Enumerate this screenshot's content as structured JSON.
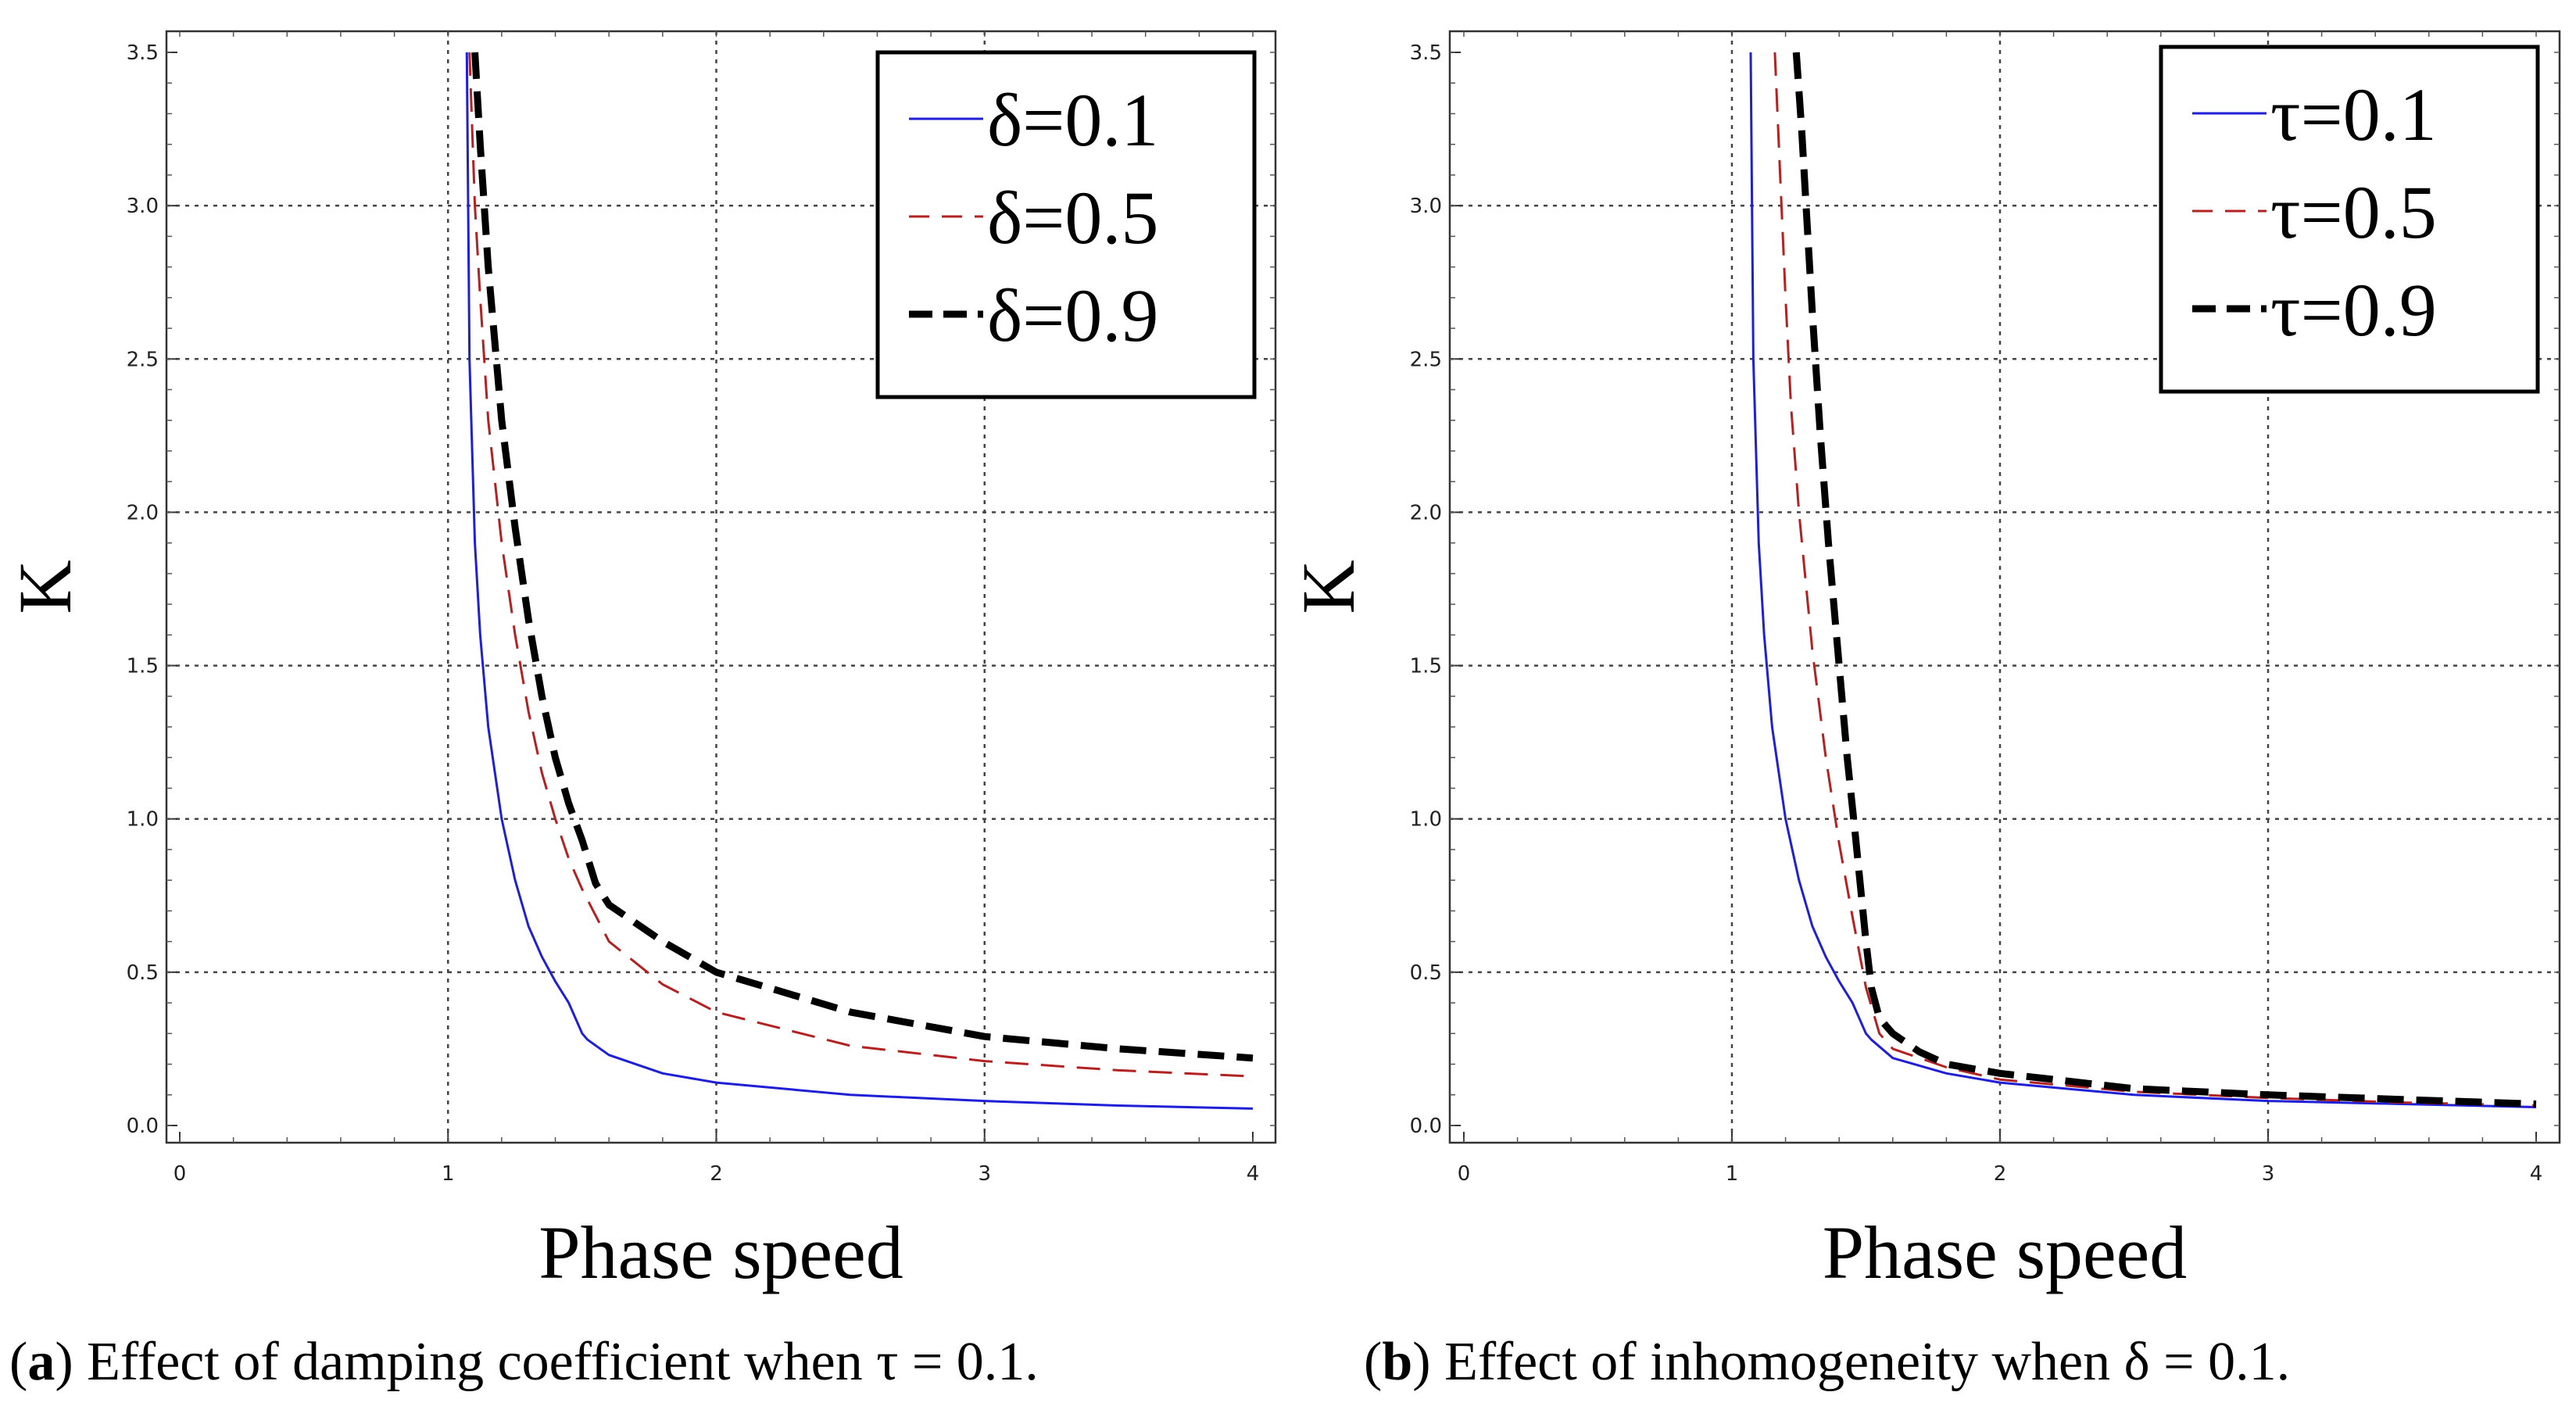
{
  "chart_data": [
    {
      "type": "line",
      "panel": "a",
      "xlabel": "Phase speed",
      "ylabel": "K",
      "xlim": [
        0,
        4
      ],
      "ylim": [
        0,
        3.5
      ],
      "xticks": [
        "0",
        "1",
        "2",
        "3",
        "4"
      ],
      "yticks": [
        "0.0",
        "0.5",
        "1.0",
        "1.5",
        "2.0",
        "2.5",
        "3.0",
        "3.5"
      ],
      "grid": true,
      "legend_position": "top-right",
      "caption_label": "a",
      "caption_text": "Effect of damping coefficient when τ = 0.1.",
      "series": [
        {
          "name": "δ=0.1",
          "color": "#1f1fd6",
          "style": "solid",
          "x": [
            1.07,
            1.08,
            1.1,
            1.12,
            1.15,
            1.2,
            1.25,
            1.3,
            1.35,
            1.4,
            1.45,
            1.5,
            1.52,
            1.6,
            1.8,
            2.0,
            2.5,
            3.0,
            3.5,
            4.0
          ],
          "y": [
            3.5,
            2.5,
            1.9,
            1.6,
            1.3,
            1.0,
            0.8,
            0.65,
            0.55,
            0.47,
            0.4,
            0.3,
            0.28,
            0.23,
            0.17,
            0.14,
            0.1,
            0.08,
            0.065,
            0.055
          ]
        },
        {
          "name": "δ=0.5",
          "color": "#b22222",
          "style": "dashed",
          "x": [
            1.08,
            1.1,
            1.12,
            1.15,
            1.2,
            1.25,
            1.3,
            1.35,
            1.4,
            1.45,
            1.5,
            1.6,
            1.8,
            2.0,
            2.5,
            3.0,
            3.5,
            4.0
          ],
          "y": [
            3.5,
            3.0,
            2.7,
            2.3,
            1.9,
            1.6,
            1.35,
            1.15,
            1.0,
            0.87,
            0.77,
            0.6,
            0.46,
            0.37,
            0.26,
            0.21,
            0.18,
            0.16
          ]
        },
        {
          "name": "δ=0.9",
          "color": "#000000",
          "style": "thickdash",
          "x": [
            1.1,
            1.12,
            1.15,
            1.2,
            1.25,
            1.3,
            1.35,
            1.4,
            1.45,
            1.5,
            1.55,
            1.6,
            1.8,
            2.0,
            2.5,
            3.0,
            3.5,
            4.0
          ],
          "y": [
            3.5,
            3.2,
            2.8,
            2.3,
            1.95,
            1.65,
            1.4,
            1.2,
            1.05,
            0.93,
            0.79,
            0.72,
            0.6,
            0.5,
            0.37,
            0.29,
            0.25,
            0.22
          ]
        }
      ]
    },
    {
      "type": "line",
      "panel": "b",
      "xlabel": "Phase speed",
      "ylabel": "K",
      "xlim": [
        0,
        4
      ],
      "ylim": [
        0,
        3.5
      ],
      "xticks": [
        "0",
        "1",
        "2",
        "3",
        "4"
      ],
      "yticks": [
        "0.0",
        "0.5",
        "1.0",
        "1.5",
        "2.0",
        "2.5",
        "3.0",
        "3.5"
      ],
      "grid": true,
      "legend_position": "top-right",
      "caption_label": "b",
      "caption_text": "Effect of inhomogeneity when δ = 0.1.",
      "series": [
        {
          "name": "τ=0.1",
          "color": "#1f1fd6",
          "style": "solid",
          "x": [
            1.07,
            1.08,
            1.1,
            1.12,
            1.15,
            1.2,
            1.25,
            1.3,
            1.35,
            1.4,
            1.45,
            1.5,
            1.52,
            1.6,
            1.8,
            2.0,
            2.5,
            3.0,
            3.5,
            4.0
          ],
          "y": [
            3.5,
            2.5,
            1.9,
            1.6,
            1.3,
            1.0,
            0.8,
            0.65,
            0.55,
            0.47,
            0.4,
            0.3,
            0.28,
            0.22,
            0.17,
            0.14,
            0.1,
            0.08,
            0.07,
            0.06
          ]
        },
        {
          "name": "τ=0.5",
          "color": "#b22222",
          "style": "dashed",
          "x": [
            1.16,
            1.18,
            1.2,
            1.22,
            1.25,
            1.3,
            1.35,
            1.4,
            1.45,
            1.5,
            1.55,
            1.6,
            1.8,
            2.0,
            2.5,
            3.0,
            3.5,
            4.0
          ],
          "y": [
            3.5,
            3.1,
            2.7,
            2.35,
            2.0,
            1.55,
            1.2,
            0.92,
            0.68,
            0.45,
            0.3,
            0.25,
            0.19,
            0.15,
            0.11,
            0.09,
            0.075,
            0.065
          ]
        },
        {
          "name": "τ=0.9",
          "color": "#000000",
          "style": "thickdash",
          "x": [
            1.24,
            1.26,
            1.28,
            1.3,
            1.33,
            1.36,
            1.4,
            1.43,
            1.46,
            1.5,
            1.52,
            1.55,
            1.6,
            1.7,
            1.8,
            2.0,
            2.5,
            3.0,
            3.5,
            4.0
          ],
          "y": [
            3.5,
            3.25,
            2.95,
            2.65,
            2.25,
            1.9,
            1.5,
            1.2,
            0.95,
            0.6,
            0.45,
            0.35,
            0.3,
            0.24,
            0.2,
            0.17,
            0.12,
            0.1,
            0.085,
            0.07
          ]
        }
      ]
    }
  ]
}
